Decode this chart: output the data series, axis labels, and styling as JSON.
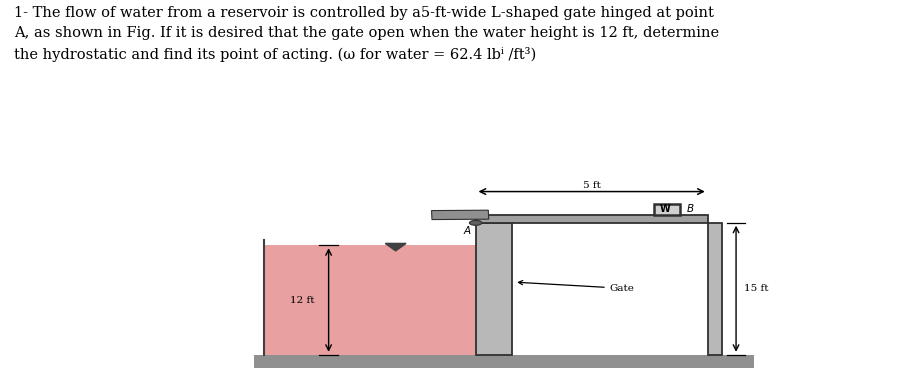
{
  "title_line1": "1- The flow of water from a reservoir is controlled by a5-ft-wide L-shaped gate hinged at point",
  "title_line2": "A, as shown in Fig. If it is desired that the gate open when the water height is 12 ft, determine",
  "title_line3": "the hydrostatic and find its point of acting. (ω for water = 62.4 lbⁱ /ft³)",
  "fig_bg": "#ffffff",
  "diagram_bg": "#d8d8d8",
  "reservoir_fill": "#e8a0a0",
  "gate_fill": "#b8b8b8",
  "gate_edge": "#303030",
  "horiz_gate_fill": "#a0a0a0",
  "right_wall_fill": "#b8b8b8",
  "weight_fill": "#d0d0d0",
  "floor_fill": "#909090",
  "strut_fill": "#909090",
  "text_color": "#000000",
  "title_fontsize": 10.5,
  "label_fontsize": 7.5
}
